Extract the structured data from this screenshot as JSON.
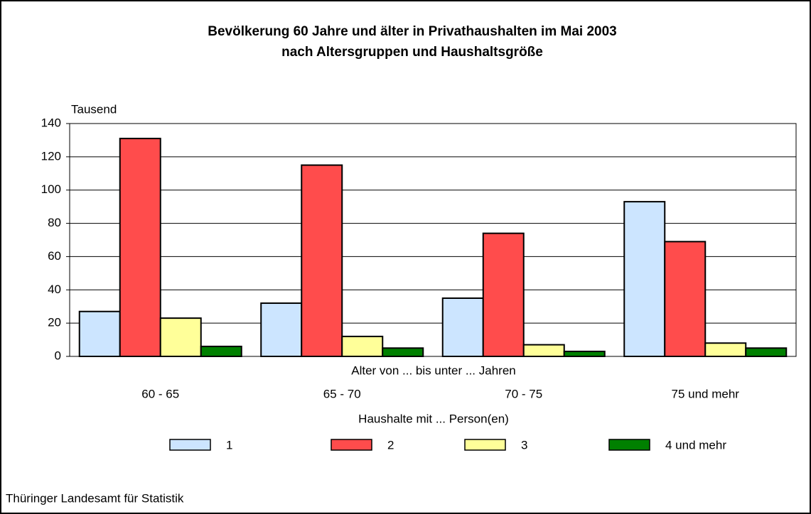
{
  "chart_data": {
    "type": "bar",
    "title": "Bevölkerung 60 Jahre und älter in Privathaushalten im Mai 2003",
    "subtitle": "nach Altersgruppen und Haushaltsgröße",
    "ylabel": "Tausend",
    "xlabel": "Alter von ... bis unter ... Jahren",
    "legend_title": "Haushalte mit ... Person(en)",
    "source": "Thüringer Landesamt für Statistik",
    "categories": [
      "60 - 65",
      "65 - 70",
      "70 - 75",
      "75 und mehr"
    ],
    "series": [
      {
        "name": "1",
        "color": "#cce5ff",
        "values": [
          27,
          32,
          35,
          93
        ]
      },
      {
        "name": "2",
        "color": "#ff4c4c",
        "values": [
          131,
          115,
          74,
          69
        ]
      },
      {
        "name": "3",
        "color": "#ffff99",
        "values": [
          23,
          12,
          7,
          8
        ]
      },
      {
        "name": "4 und mehr",
        "color": "#008000",
        "values": [
          6,
          5,
          3,
          5
        ]
      }
    ],
    "ylim": [
      0,
      140
    ],
    "yticks": [
      0,
      20,
      40,
      60,
      80,
      100,
      120,
      140
    ],
    "grid": true,
    "legend": "bottom"
  }
}
